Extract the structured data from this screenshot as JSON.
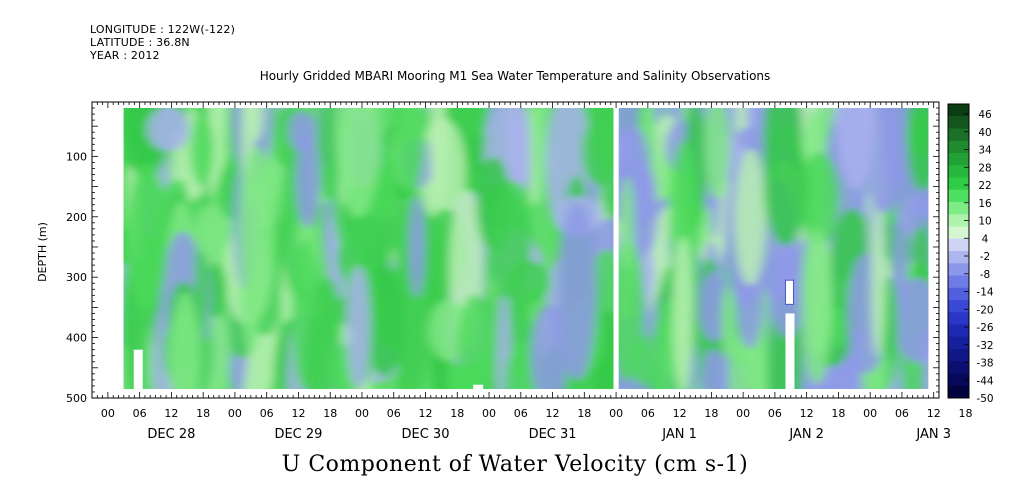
{
  "header": {
    "longitude": "LONGITUDE : 122W(-122)",
    "latitude": "LATITUDE : 36.8N",
    "year": "YEAR : 2012"
  },
  "chart_data": {
    "type": "heatmap",
    "title": "Hourly Gridded MBARI Mooring M1 Sea Water Temperature and Salinity Observations",
    "bottom_title": "U Component of Water Velocity (cm s-1)",
    "ylabel": "DEPTH (m)",
    "ylim": [
      500,
      10
    ],
    "y_ticks": [
      100,
      200,
      300,
      400,
      500
    ],
    "x_hour_labels": [
      "00",
      "06",
      "12",
      "18",
      "00",
      "06",
      "12",
      "18",
      "00",
      "06",
      "12",
      "18",
      "00",
      "06",
      "12",
      "18",
      "00",
      "06",
      "12",
      "18",
      "00",
      "06",
      "12",
      "18",
      "00",
      "06",
      "12",
      "18"
    ],
    "x_day_labels": [
      "DEC 28",
      "DEC 29",
      "DEC 30",
      "DEC 31",
      "JAN  1",
      "JAN  2",
      "JAN  3"
    ],
    "x_range_hours": [
      -3,
      157
    ],
    "data_start_hour": 3,
    "data_end_hour": 155,
    "data_depth_range": [
      20,
      485
    ],
    "gap_hours": [
      95.5,
      96.5
    ],
    "colorbar": {
      "levels": [
        46,
        40,
        34,
        28,
        22,
        16,
        10,
        4,
        -2,
        -8,
        -14,
        -20,
        -26,
        -32,
        -38,
        -44,
        -50
      ],
      "colors_top_to_bottom": [
        "#0b3d12",
        "#12561d",
        "#1a7028",
        "#1f8a2e",
        "#22a236",
        "#28b83d",
        "#2fcd45",
        "#4ee160",
        "#7dec85",
        "#aef3ad",
        "#d4f6d0",
        "#cfd3f5",
        "#aeb6f0",
        "#8d98ec",
        "#6f7be7",
        "#5260e0",
        "#3a48d6",
        "#2a36c6",
        "#1f28b2",
        "#17209c",
        "#101786",
        "#0a0f70",
        "#06095a",
        "#03043f"
      ]
    },
    "fill_colors": [
      "#4bd95a",
      "#7fe884",
      "#a9b2ee",
      "#8e99e8",
      "#33c847",
      "#b8f0b3"
    ]
  }
}
